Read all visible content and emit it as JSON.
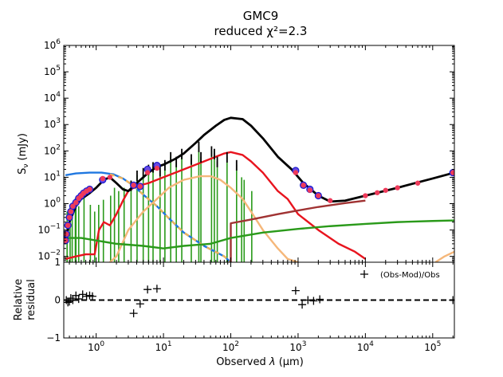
{
  "chart_data": {
    "type": "line",
    "title_line1": "GMC9",
    "title_line2": "reduced χ²=2.3",
    "main": {
      "ylabel_main": "S",
      "ylabel_sub": "ν",
      "ylabel_unit": " (mJy)",
      "xscale": "log",
      "yscale": "log",
      "xlim": [
        0.33,
        210000
      ],
      "ylim": [
        0.006,
        1000000
      ],
      "yticks": [
        {
          "v": 0.01,
          "b": "10",
          "e": "−2"
        },
        {
          "v": 0.1,
          "b": "10",
          "e": "−1"
        },
        {
          "v": 1,
          "b": "10",
          "e": "0"
        },
        {
          "v": 10,
          "b": "10",
          "e": "1"
        },
        {
          "v": 100,
          "b": "10",
          "e": "2"
        },
        {
          "v": 1000,
          "b": "10",
          "e": "3"
        },
        {
          "v": 10000,
          "b": "10",
          "e": "4"
        },
        {
          "v": 100000,
          "b": "10",
          "e": "5"
        },
        {
          "v": 1000000,
          "b": "10",
          "e": "6"
        }
      ],
      "series": [
        {
          "kind": "stellar_unattenuated",
          "color": "#1f77e0",
          "dash": false,
          "points": [
            [
              0.35,
              12
            ],
            [
              0.5,
              14
            ],
            [
              0.8,
              15
            ],
            [
              1.2,
              15
            ],
            [
              1.8,
              13
            ],
            [
              2.5,
              9
            ],
            [
              3.5,
              5
            ],
            [
              5,
              2.2
            ],
            [
              8,
              0.8
            ],
            [
              12,
              0.28
            ],
            [
              20,
              0.08
            ],
            [
              40,
              0.025
            ],
            [
              80,
              0.01
            ],
            [
              100,
              0.006
            ]
          ]
        },
        {
          "kind": "stellar_unattenuated_dashed",
          "color": "#f0b45a",
          "dash": true,
          "points": [
            [
              1.6,
              13
            ],
            [
              2.5,
              9
            ],
            [
              3.5,
              5
            ],
            [
              5,
              2.2
            ],
            [
              8,
              0.8
            ],
            [
              12,
              0.28
            ],
            [
              20,
              0.08
            ],
            [
              40,
              0.025
            ],
            [
              80,
              0.01
            ],
            [
              100,
              0.006
            ]
          ]
        },
        {
          "kind": "stellar_attenuated",
          "color": "#e8141e",
          "dash": false,
          "points": [
            [
              0.35,
              0.008
            ],
            [
              0.5,
              0.01
            ],
            [
              0.7,
              0.012
            ],
            [
              0.95,
              0.012
            ],
            [
              1.1,
              0.1
            ],
            [
              1.3,
              0.2
            ],
            [
              1.6,
              0.15
            ],
            [
              2,
              0.4
            ],
            [
              2.5,
              1.3
            ],
            [
              3,
              3
            ],
            [
              3.6,
              4
            ],
            [
              4.5,
              5
            ],
            [
              6,
              6
            ],
            [
              10,
              10
            ],
            [
              20,
              20
            ],
            [
              40,
              40
            ],
            [
              80,
              80
            ],
            [
              100,
              90
            ],
            [
              150,
              70
            ],
            [
              200,
              40
            ],
            [
              300,
              15
            ],
            [
              500,
              3
            ],
            [
              700,
              1.5
            ],
            [
              1000,
              0.4
            ],
            [
              2000,
              0.1
            ],
            [
              4000,
              0.03
            ],
            [
              7000,
              0.015
            ],
            [
              10000,
              0.008
            ]
          ]
        },
        {
          "kind": "dust",
          "color": "#f5b77a",
          "dash": false,
          "points": [
            [
              1.6,
              0.006
            ],
            [
              2,
              0.01
            ],
            [
              3,
              0.1
            ],
            [
              5,
              0.5
            ],
            [
              8,
              1.5
            ],
            [
              12,
              4
            ],
            [
              20,
              8
            ],
            [
              35,
              11
            ],
            [
              50,
              11
            ],
            [
              70,
              8
            ],
            [
              100,
              4
            ],
            [
              150,
              1.5
            ],
            [
              200,
              0.5
            ],
            [
              300,
              0.1
            ],
            [
              500,
              0.02
            ],
            [
              700,
              0.008
            ],
            [
              1000,
              0.006
            ]
          ]
        },
        {
          "kind": "radio",
          "color": "#a03232",
          "dash": false,
          "points": [
            [
              100,
              0.006
            ],
            [
              100,
              0.18
            ],
            [
              200,
              0.25
            ],
            [
              500,
              0.4
            ],
            [
              1000,
              0.55
            ],
            [
              2000,
              0.75
            ],
            [
              5000,
              1.05
            ],
            [
              10000,
              1.3
            ]
          ]
        },
        {
          "kind": "nebular_continuum",
          "color": "#2a9a1a",
          "dash": false,
          "points": [
            [
              0.35,
              0.05
            ],
            [
              0.6,
              0.05
            ],
            [
              1,
              0.04
            ],
            [
              2,
              0.03
            ],
            [
              5,
              0.025
            ],
            [
              10,
              0.02
            ],
            [
              20,
              0.025
            ],
            [
              50,
              0.03
            ],
            [
              100,
              0.05
            ],
            [
              300,
              0.08
            ],
            [
              1000,
              0.11
            ],
            [
              3000,
              0.14
            ],
            [
              10000,
              0.17
            ],
            [
              30000,
              0.2
            ],
            [
              100000,
              0.22
            ],
            [
              210000,
              0.23
            ]
          ]
        },
        {
          "kind": "dust_tail",
          "color": "#f5b77a",
          "dash": false,
          "points": [
            [
              110000,
              0.006
            ],
            [
              150000,
              0.01
            ],
            [
              210000,
              0.015
            ]
          ]
        },
        {
          "kind": "model_total",
          "color": "#000000",
          "dash": false,
          "points": [
            [
              0.35,
              0.03
            ],
            [
              0.4,
              0.2
            ],
            [
              0.5,
              0.8
            ],
            [
              0.6,
              1.5
            ],
            [
              0.8,
              2.5
            ],
            [
              1,
              4
            ],
            [
              1.3,
              8
            ],
            [
              1.6,
              10
            ],
            [
              2,
              6
            ],
            [
              2.5,
              3.5
            ],
            [
              3,
              3
            ],
            [
              4,
              6
            ],
            [
              6,
              15
            ],
            [
              8,
              25
            ],
            [
              10,
              30
            ],
            [
              15,
              50
            ],
            [
              20,
              80
            ],
            [
              30,
              200
            ],
            [
              40,
              400
            ],
            [
              60,
              900
            ],
            [
              80,
              1500
            ],
            [
              100,
              1800
            ],
            [
              150,
              1600
            ],
            [
              200,
              900
            ],
            [
              300,
              300
            ],
            [
              500,
              60
            ],
            [
              800,
              20
            ],
            [
              1200,
              6
            ],
            [
              2000,
              2
            ],
            [
              3000,
              1.2
            ],
            [
              5000,
              1.3
            ],
            [
              10000,
              2
            ],
            [
              30000,
              4
            ],
            [
              100000,
              9
            ],
            [
              210000,
              15
            ]
          ]
        }
      ],
      "line_spikes": [
        {
          "x": 0.37,
          "y": 0.5
        },
        {
          "x": 0.41,
          "y": 0.7
        },
        {
          "x": 0.44,
          "y": 1.0
        },
        {
          "x": 0.49,
          "y": 1.6
        },
        {
          "x": 0.5,
          "y": 1.6
        },
        {
          "x": 0.55,
          "y": 0.8
        },
        {
          "x": 0.66,
          "y": 3.3
        },
        {
          "x": 0.82,
          "y": 0.9
        },
        {
          "x": 0.95,
          "y": 0.5
        },
        {
          "x": 1.09,
          "y": 0.9
        },
        {
          "x": 1.28,
          "y": 1.4
        },
        {
          "x": 1.64,
          "y": 2
        },
        {
          "x": 1.87,
          "y": 4
        },
        {
          "x": 2.16,
          "y": 3
        },
        {
          "x": 2.6,
          "y": 4
        },
        {
          "x": 3.3,
          "y": 5
        },
        {
          "x": 4.05,
          "y": 12
        },
        {
          "x": 5.0,
          "y": 15
        },
        {
          "x": 6.0,
          "y": 20
        },
        {
          "x": 7.0,
          "y": 25
        },
        {
          "x": 8.9,
          "y": 18
        },
        {
          "x": 10.5,
          "y": 30
        },
        {
          "x": 12.8,
          "y": 60
        },
        {
          "x": 15.5,
          "y": 40
        },
        {
          "x": 18.7,
          "y": 80
        },
        {
          "x": 25.9,
          "y": 50
        },
        {
          "x": 33.5,
          "y": 150
        },
        {
          "x": 36,
          "y": 60
        },
        {
          "x": 51.8,
          "y": 100
        },
        {
          "x": 57,
          "y": 80
        },
        {
          "x": 63,
          "y": 40
        },
        {
          "x": 88,
          "y": 60
        },
        {
          "x": 122,
          "y": 30
        },
        {
          "x": 145,
          "y": 10
        },
        {
          "x": 158,
          "y": 8
        },
        {
          "x": 205,
          "y": 3
        }
      ],
      "observed_points": [
        {
          "x": 0.35,
          "y": 0.04
        },
        {
          "x": 0.36,
          "y": 0.07
        },
        {
          "x": 0.38,
          "y": 0.15
        },
        {
          "x": 0.4,
          "y": 0.3
        },
        {
          "x": 0.42,
          "y": 0.5
        },
        {
          "x": 0.45,
          "y": 0.8
        },
        {
          "x": 0.5,
          "y": 1.1
        },
        {
          "x": 0.55,
          "y": 1.6
        },
        {
          "x": 0.6,
          "y": 2.0
        },
        {
          "x": 0.65,
          "y": 2.5
        },
        {
          "x": 0.72,
          "y": 3.0
        },
        {
          "x": 0.8,
          "y": 3.5
        },
        {
          "x": 1.25,
          "y": 8
        },
        {
          "x": 3.6,
          "y": 5
        },
        {
          "x": 4.5,
          "y": 4.5
        },
        {
          "x": 5.8,
          "y": 20
        },
        {
          "x": 8.0,
          "y": 28
        },
        {
          "x": 920,
          "y": 18
        },
        {
          "x": 1200,
          "y": 5
        },
        {
          "x": 1500,
          "y": 3.5
        },
        {
          "x": 2000,
          "y": 2
        },
        {
          "x": 200000,
          "y": 15
        }
      ],
      "model_points": [
        {
          "x": 0.35,
          "y": 0.04
        },
        {
          "x": 0.36,
          "y": 0.07
        },
        {
          "x": 0.38,
          "y": 0.15
        },
        {
          "x": 0.4,
          "y": 0.3
        },
        {
          "x": 0.42,
          "y": 0.5
        },
        {
          "x": 0.45,
          "y": 0.8
        },
        {
          "x": 0.5,
          "y": 1.1
        },
        {
          "x": 0.55,
          "y": 1.6
        },
        {
          "x": 0.6,
          "y": 2.0
        },
        {
          "x": 0.65,
          "y": 2.5
        },
        {
          "x": 0.72,
          "y": 3.0
        },
        {
          "x": 0.8,
          "y": 3.5
        },
        {
          "x": 1.25,
          "y": 9
        },
        {
          "x": 1.6,
          "y": 10
        },
        {
          "x": 3.6,
          "y": 5
        },
        {
          "x": 4.5,
          "y": 4.5
        },
        {
          "x": 5.8,
          "y": 15
        },
        {
          "x": 8.0,
          "y": 22
        },
        {
          "x": 920,
          "y": 15
        },
        {
          "x": 1200,
          "y": 5
        },
        {
          "x": 1500,
          "y": 3.2
        },
        {
          "x": 2000,
          "y": 2
        },
        {
          "x": 3000,
          "y": 1.3
        },
        {
          "x": 10000,
          "y": 2
        },
        {
          "x": 15000,
          "y": 2.6
        },
        {
          "x": 20000,
          "y": 3.2
        },
        {
          "x": 30000,
          "y": 4.0
        },
        {
          "x": 60000,
          "y": 6.0
        },
        {
          "x": 200000,
          "y": 15
        }
      ]
    },
    "residual": {
      "ylabel_line1": "Relative",
      "ylabel_line2": "residual",
      "xlabel_prefix": "Observed ",
      "xlabel_symbol": "λ",
      "xlabel_unit": " (μm)",
      "ylim": [
        -1,
        1
      ],
      "yticks": [
        {
          "v": -1,
          "label": "−1"
        },
        {
          "v": 0,
          "label": "0"
        },
        {
          "v": 1,
          "label": "1"
        }
      ],
      "xticks": [
        {
          "v": 1,
          "b": "10",
          "e": "0"
        },
        {
          "v": 10,
          "b": "10",
          "e": "1"
        },
        {
          "v": 100,
          "b": "10",
          "e": "2"
        },
        {
          "v": 1000,
          "b": "10",
          "e": "3"
        },
        {
          "v": 10000,
          "b": "10",
          "e": "4"
        },
        {
          "v": 100000,
          "b": "10",
          "e": "5"
        }
      ],
      "legend_label": "(Obs-Mod)/Obs",
      "legend_position": "top-right",
      "points": [
        {
          "x": 0.36,
          "y": 0.0
        },
        {
          "x": 0.38,
          "y": -0.06
        },
        {
          "x": 0.4,
          "y": -0.04
        },
        {
          "x": 0.42,
          "y": 0.05
        },
        {
          "x": 0.45,
          "y": 0.0
        },
        {
          "x": 0.5,
          "y": 0.12
        },
        {
          "x": 0.55,
          "y": 0.03
        },
        {
          "x": 0.63,
          "y": 0.15
        },
        {
          "x": 0.72,
          "y": 0.1
        },
        {
          "x": 0.8,
          "y": 0.12
        },
        {
          "x": 0.88,
          "y": 0.1
        },
        {
          "x": 3.6,
          "y": -0.35
        },
        {
          "x": 4.5,
          "y": -0.1
        },
        {
          "x": 5.8,
          "y": 0.28
        },
        {
          "x": 8.0,
          "y": 0.3
        },
        {
          "x": 920,
          "y": 0.25
        },
        {
          "x": 1150,
          "y": -0.12
        },
        {
          "x": 1400,
          "y": 0.0
        },
        {
          "x": 1700,
          "y": -0.02
        },
        {
          "x": 2100,
          "y": 0.02
        },
        {
          "x": 200000,
          "y": 0.0
        }
      ]
    }
  }
}
